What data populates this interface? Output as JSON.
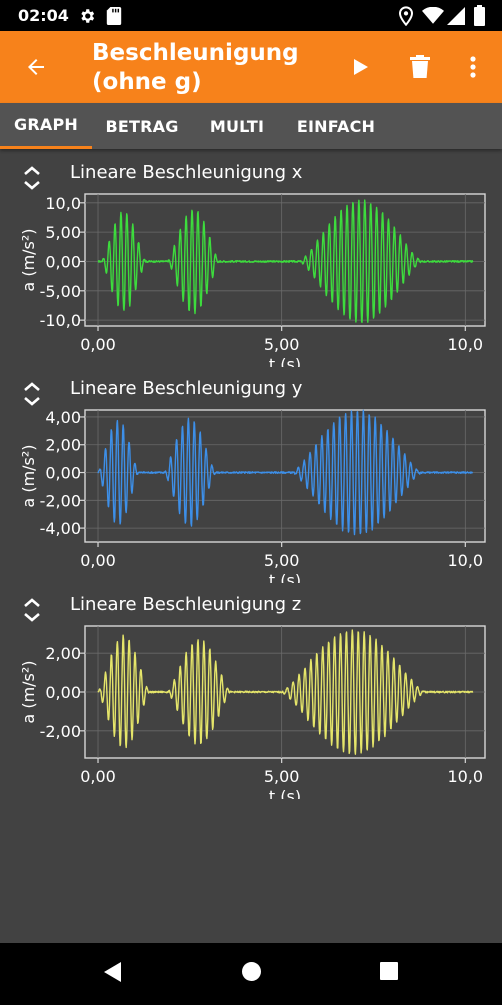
{
  "status_bar": {
    "time": "02:04",
    "icons": [
      "gear-icon",
      "sd-card-icon",
      "location-icon",
      "wifi-icon",
      "signal-icon",
      "battery-icon"
    ]
  },
  "app_bar": {
    "title_line1": "Beschleunigung",
    "title_line2": "(ohne g)",
    "back_icon": "arrow-back-icon",
    "actions": [
      "play-icon",
      "delete-icon",
      "more-vert-icon"
    ],
    "color": "#f7821b"
  },
  "tabs": [
    {
      "label": "GRAPH",
      "active": true
    },
    {
      "label": "BETRAG",
      "active": false
    },
    {
      "label": "MULTI",
      "active": false
    },
    {
      "label": "EINFACH",
      "active": false
    }
  ],
  "graphs": [
    {
      "title": "Lineare Beschleunigung x",
      "ylabel": "a (m/s²)",
      "xlabel": "t (s)",
      "yticks": [
        "10,0",
        "5,00",
        "0,00",
        "-5,00",
        "-10,0"
      ],
      "xticks": [
        "0,00",
        "5,00",
        "10,0"
      ],
      "color": "#3ddc3d"
    },
    {
      "title": "Lineare Beschleunigung y",
      "ylabel": "a (m/s²)",
      "xlabel": "t (s)",
      "yticks": [
        "4,00",
        "2,00",
        "0,00",
        "-2,00",
        "-4,00"
      ],
      "xticks": [
        "0,00",
        "5,00",
        "10,0"
      ],
      "color": "#3d8fe8"
    },
    {
      "title": "Lineare Beschleunigung z",
      "ylabel": "a (m/s²)",
      "xlabel": "t (s)",
      "yticks": [
        "2,00",
        "0,00",
        "-2,00"
      ],
      "xticks": [
        "0,00",
        "5,00",
        "10,0"
      ],
      "color": "#e5e56a"
    }
  ],
  "chart_data": [
    {
      "type": "line",
      "title": "Lineare Beschleunigung x",
      "xlabel": "t (s)",
      "ylabel": "a (m/s²)",
      "xlim": [
        -0.3,
        10.4
      ],
      "ylim": [
        -11,
        11.5
      ],
      "grid": true,
      "bursts": [
        {
          "t0": 0.1,
          "t1": 1.3,
          "amp": 8.5
        },
        {
          "t0": 1.9,
          "t1": 3.3,
          "amp": 9.0
        },
        {
          "t0": 5.5,
          "t1": 8.8,
          "amp": 10.5
        }
      ],
      "color": "#3ddc3d"
    },
    {
      "type": "line",
      "title": "Lineare Beschleunigung y",
      "xlabel": "t (s)",
      "ylabel": "a (m/s²)",
      "xlim": [
        -0.3,
        10.4
      ],
      "ylim": [
        -5,
        4.5
      ],
      "grid": true,
      "bursts": [
        {
          "t0": 0.0,
          "t1": 1.1,
          "amp": 3.8
        },
        {
          "t0": 1.8,
          "t1": 3.2,
          "amp": 3.9
        },
        {
          "t0": 5.3,
          "t1": 8.8,
          "amp": 4.5
        }
      ],
      "color": "#3d8fe8"
    },
    {
      "type": "line",
      "title": "Lineare Beschleunigung z",
      "xlabel": "t (s)",
      "ylabel": "a (m/s²)",
      "xlim": [
        -0.3,
        10.4
      ],
      "ylim": [
        -3.4,
        3.4
      ],
      "grid": true,
      "bursts": [
        {
          "t0": 0.0,
          "t1": 1.4,
          "amp": 2.9
        },
        {
          "t0": 1.9,
          "t1": 3.6,
          "amp": 2.7
        },
        {
          "t0": 5.0,
          "t1": 8.9,
          "amp": 3.2
        }
      ],
      "color": "#e5e56a"
    }
  ],
  "nav_bar": {
    "buttons": [
      "back-triangle-icon",
      "home-circle-icon",
      "recents-square-icon"
    ]
  }
}
